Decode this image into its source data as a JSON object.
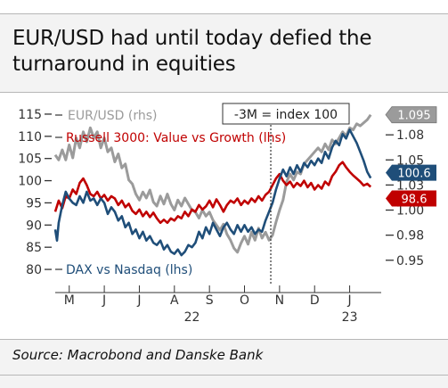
{
  "title": "EUR/USD had until today defied the turnaround in equities",
  "title_lines": [
    "EUR/USD had until today defied the",
    "turnaround in equities"
  ],
  "source": "Source: Macrobond and Danske Bank",
  "colors": {
    "eurusd": "#9b9b9b",
    "russell": "#c00000",
    "dax": "#1f4e79",
    "axis": "#333333"
  },
  "chart_data": {
    "type": "line",
    "title": "EUR/USD had until today defied the turnaround in equities",
    "annotation": "-3M = index 100",
    "annotation_x_month": 5.75,
    "x_tick_labels": [
      "M",
      "J",
      "J",
      "A",
      "S",
      "O",
      "N",
      "D",
      "J"
    ],
    "x_tick_months": [
      0,
      1,
      2,
      3,
      4,
      5,
      6,
      7,
      8
    ],
    "year_labels": [
      {
        "text": "22",
        "month": 3.5
      },
      {
        "text": "23",
        "month": 8
      }
    ],
    "x_range_months": [
      -0.4,
      8.9
    ],
    "left_axis": {
      "label": "lhs",
      "ylim": [
        78,
        117
      ],
      "ticks": [
        80,
        85,
        90,
        95,
        100,
        105,
        110,
        115
      ]
    },
    "right_axis": {
      "label": "rhs",
      "ylim": [
        0.932,
        1.1045
      ],
      "ticks": [
        "0.95",
        "0.98",
        "1.00",
        "1.03",
        "1.05",
        "1.08"
      ],
      "tick_values": [
        0.95,
        0.975,
        1.0,
        1.025,
        1.05,
        1.075
      ]
    },
    "end_labels": [
      {
        "series": "EUR/USD (rhs)",
        "text": "1.095"
      },
      {
        "series": "DAX vs Nasdaq (lhs)",
        "text": "100.6"
      },
      {
        "series": "Russell 3000: Value vs Growth (lhs)",
        "text": "98.6"
      }
    ],
    "series": [
      {
        "name": "EUR/USD (rhs)",
        "axis": "right",
        "color": "#9b9b9b",
        "points": [
          [
            -0.4,
            1.055
          ],
          [
            -0.3,
            1.05
          ],
          [
            -0.2,
            1.06
          ],
          [
            -0.1,
            1.05
          ],
          [
            0.0,
            1.065
          ],
          [
            0.1,
            1.052
          ],
          [
            0.2,
            1.072
          ],
          [
            0.3,
            1.062
          ],
          [
            0.4,
            1.078
          ],
          [
            0.5,
            1.068
          ],
          [
            0.6,
            1.082
          ],
          [
            0.7,
            1.072
          ],
          [
            0.8,
            1.078
          ],
          [
            0.9,
            1.062
          ],
          [
            1.0,
            1.072
          ],
          [
            1.1,
            1.058
          ],
          [
            1.2,
            1.062
          ],
          [
            1.3,
            1.048
          ],
          [
            1.4,
            1.056
          ],
          [
            1.5,
            1.042
          ],
          [
            1.6,
            1.046
          ],
          [
            1.7,
            1.03
          ],
          [
            1.8,
            1.026
          ],
          [
            1.9,
            1.016
          ],
          [
            2.0,
            1.01
          ],
          [
            2.1,
            1.018
          ],
          [
            2.2,
            1.012
          ],
          [
            2.3,
            1.02
          ],
          [
            2.4,
            1.008
          ],
          [
            2.5,
            1.004
          ],
          [
            2.6,
            1.014
          ],
          [
            2.7,
            1.006
          ],
          [
            2.8,
            1.016
          ],
          [
            2.9,
            1.006
          ],
          [
            3.0,
            1.0
          ],
          [
            3.1,
            1.01
          ],
          [
            3.2,
            1.004
          ],
          [
            3.3,
            1.012
          ],
          [
            3.4,
            1.006
          ],
          [
            3.5,
            1.0
          ],
          [
            3.6,
            0.998
          ],
          [
            3.7,
            0.992
          ],
          [
            3.8,
            1.0
          ],
          [
            3.9,
            0.994
          ],
          [
            4.0,
            0.998
          ],
          [
            4.1,
            0.99
          ],
          [
            4.2,
            0.985
          ],
          [
            4.3,
            0.98
          ],
          [
            4.4,
            0.986
          ],
          [
            4.5,
            0.976
          ],
          [
            4.6,
            0.97
          ],
          [
            4.7,
            0.962
          ],
          [
            4.8,
            0.958
          ],
          [
            4.9,
            0.967
          ],
          [
            5.0,
            0.974
          ],
          [
            5.1,
            0.966
          ],
          [
            5.2,
            0.978
          ],
          [
            5.3,
            0.97
          ],
          [
            5.4,
            0.982
          ],
          [
            5.5,
            0.972
          ],
          [
            5.6,
            0.978
          ],
          [
            5.7,
            0.97
          ],
          [
            5.8,
            0.975
          ],
          [
            5.9,
            0.988
          ],
          [
            6.0,
            1.0
          ],
          [
            6.1,
            1.01
          ],
          [
            6.2,
            1.028
          ],
          [
            6.3,
            1.036
          ],
          [
            6.4,
            1.03
          ],
          [
            6.5,
            1.038
          ],
          [
            6.6,
            1.036
          ],
          [
            6.7,
            1.046
          ],
          [
            6.8,
            1.05
          ],
          [
            6.9,
            1.054
          ],
          [
            7.0,
            1.058
          ],
          [
            7.1,
            1.062
          ],
          [
            7.2,
            1.058
          ],
          [
            7.3,
            1.066
          ],
          [
            7.4,
            1.06
          ],
          [
            7.5,
            1.07
          ],
          [
            7.6,
            1.066
          ],
          [
            7.7,
            1.072
          ],
          [
            7.8,
            1.078
          ],
          [
            7.9,
            1.074
          ],
          [
            8.0,
            1.082
          ],
          [
            8.1,
            1.08
          ],
          [
            8.2,
            1.086
          ],
          [
            8.3,
            1.084
          ],
          [
            8.5,
            1.09
          ],
          [
            8.6,
            1.095
          ]
        ]
      },
      {
        "name": "Russell 3000: Value vs Growth (lhs)",
        "axis": "left",
        "color": "#c00000",
        "points": [
          [
            -0.4,
            93.0
          ],
          [
            -0.3,
            95.5
          ],
          [
            -0.2,
            93.8
          ],
          [
            -0.1,
            96.5
          ],
          [
            0.0,
            96.0
          ],
          [
            0.1,
            98.0
          ],
          [
            0.2,
            97.0
          ],
          [
            0.3,
            99.5
          ],
          [
            0.4,
            100.5
          ],
          [
            0.5,
            99.0
          ],
          [
            0.6,
            97.0
          ],
          [
            0.7,
            96.5
          ],
          [
            0.8,
            97.5
          ],
          [
            0.9,
            96.0
          ],
          [
            1.0,
            96.8
          ],
          [
            1.1,
            95.5
          ],
          [
            1.2,
            96.5
          ],
          [
            1.3,
            96.0
          ],
          [
            1.4,
            94.5
          ],
          [
            1.5,
            95.5
          ],
          [
            1.6,
            94.0
          ],
          [
            1.7,
            94.8
          ],
          [
            1.8,
            93.2
          ],
          [
            1.9,
            92.5
          ],
          [
            2.0,
            93.5
          ],
          [
            2.1,
            92.0
          ],
          [
            2.2,
            93.0
          ],
          [
            2.3,
            91.8
          ],
          [
            2.4,
            92.8
          ],
          [
            2.5,
            91.5
          ],
          [
            2.6,
            90.5
          ],
          [
            2.7,
            91.2
          ],
          [
            2.8,
            90.5
          ],
          [
            2.9,
            91.5
          ],
          [
            3.0,
            91.0
          ],
          [
            3.1,
            92.0
          ],
          [
            3.2,
            91.5
          ],
          [
            3.3,
            93.0
          ],
          [
            3.4,
            92.0
          ],
          [
            3.5,
            93.5
          ],
          [
            3.6,
            93.0
          ],
          [
            3.7,
            94.5
          ],
          [
            3.8,
            93.5
          ],
          [
            3.9,
            94.2
          ],
          [
            4.0,
            95.5
          ],
          [
            4.1,
            94.0
          ],
          [
            4.2,
            95.8
          ],
          [
            4.3,
            94.5
          ],
          [
            4.4,
            93.0
          ],
          [
            4.5,
            94.5
          ],
          [
            4.6,
            95.5
          ],
          [
            4.7,
            95.0
          ],
          [
            4.8,
            96.0
          ],
          [
            4.9,
            94.5
          ],
          [
            5.0,
            95.5
          ],
          [
            5.1,
            94.8
          ],
          [
            5.2,
            96.0
          ],
          [
            5.3,
            95.2
          ],
          [
            5.4,
            96.5
          ],
          [
            5.5,
            95.5
          ],
          [
            5.6,
            96.8
          ],
          [
            5.7,
            97.5
          ],
          [
            5.8,
            99.0
          ],
          [
            5.9,
            100.5
          ],
          [
            6.0,
            101.5
          ],
          [
            6.1,
            100.0
          ],
          [
            6.2,
            99.0
          ],
          [
            6.3,
            99.8
          ],
          [
            6.4,
            98.5
          ],
          [
            6.5,
            99.5
          ],
          [
            6.6,
            98.8
          ],
          [
            6.7,
            100.0
          ],
          [
            6.8,
            98.5
          ],
          [
            6.9,
            99.5
          ],
          [
            7.0,
            98.0
          ],
          [
            7.1,
            99.0
          ],
          [
            7.2,
            98.2
          ],
          [
            7.3,
            99.8
          ],
          [
            7.4,
            99.0
          ],
          [
            7.5,
            101.0
          ],
          [
            7.6,
            102.0
          ],
          [
            7.7,
            103.5
          ],
          [
            7.8,
            104.2
          ],
          [
            7.9,
            103.0
          ],
          [
            8.0,
            102.0
          ],
          [
            8.1,
            101.2
          ],
          [
            8.2,
            100.5
          ],
          [
            8.3,
            99.8
          ],
          [
            8.4,
            98.9
          ],
          [
            8.5,
            99.3
          ],
          [
            8.6,
            98.6
          ]
        ]
      },
      {
        "name": "DAX vs Nasdaq (lhs)",
        "axis": "left",
        "color": "#1f4e79",
        "points": [
          [
            -0.4,
            89.0
          ],
          [
            -0.35,
            86.5
          ],
          [
            -0.3,
            90.5
          ],
          [
            -0.2,
            94.5
          ],
          [
            -0.1,
            97.5
          ],
          [
            0.0,
            96.0
          ],
          [
            0.1,
            95.0
          ],
          [
            0.2,
            94.5
          ],
          [
            0.3,
            96.5
          ],
          [
            0.4,
            95.0
          ],
          [
            0.5,
            97.5
          ],
          [
            0.6,
            95.5
          ],
          [
            0.7,
            96.0
          ],
          [
            0.8,
            94.5
          ],
          [
            0.9,
            96.0
          ],
          [
            1.0,
            95.0
          ],
          [
            1.1,
            92.5
          ],
          [
            1.2,
            94.0
          ],
          [
            1.3,
            93.0
          ],
          [
            1.4,
            91.0
          ],
          [
            1.5,
            92.0
          ],
          [
            1.6,
            89.5
          ],
          [
            1.7,
            90.5
          ],
          [
            1.8,
            88.0
          ],
          [
            1.9,
            89.0
          ],
          [
            2.0,
            87.0
          ],
          [
            2.1,
            88.5
          ],
          [
            2.2,
            86.5
          ],
          [
            2.3,
            87.5
          ],
          [
            2.4,
            86.0
          ],
          [
            2.5,
            85.5
          ],
          [
            2.6,
            86.5
          ],
          [
            2.7,
            84.5
          ],
          [
            2.8,
            85.5
          ],
          [
            2.9,
            84.0
          ],
          [
            3.0,
            83.5
          ],
          [
            3.1,
            84.5
          ],
          [
            3.2,
            83.2
          ],
          [
            3.3,
            84.0
          ],
          [
            3.4,
            85.5
          ],
          [
            3.5,
            85.0
          ],
          [
            3.6,
            86.0
          ],
          [
            3.7,
            88.5
          ],
          [
            3.8,
            87.0
          ],
          [
            3.9,
            89.5
          ],
          [
            4.0,
            88.0
          ],
          [
            4.1,
            90.5
          ],
          [
            4.2,
            89.0
          ],
          [
            4.3,
            87.5
          ],
          [
            4.4,
            89.5
          ],
          [
            4.5,
            90.5
          ],
          [
            4.6,
            89.0
          ],
          [
            4.7,
            88.0
          ],
          [
            4.8,
            90.0
          ],
          [
            4.9,
            88.5
          ],
          [
            5.0,
            90.0
          ],
          [
            5.1,
            88.5
          ],
          [
            5.2,
            89.5
          ],
          [
            5.3,
            88.0
          ],
          [
            5.4,
            89.0
          ],
          [
            5.5,
            88.5
          ],
          [
            5.6,
            91.0
          ],
          [
            5.7,
            93.0
          ],
          [
            5.8,
            95.0
          ],
          [
            5.9,
            98.0
          ],
          [
            6.0,
            100.5
          ],
          [
            6.1,
            102.5
          ],
          [
            6.2,
            101.0
          ],
          [
            6.3,
            103.0
          ],
          [
            6.4,
            101.5
          ],
          [
            6.5,
            103.5
          ],
          [
            6.6,
            102.0
          ],
          [
            6.7,
            104.0
          ],
          [
            6.8,
            103.0
          ],
          [
            6.9,
            104.5
          ],
          [
            7.0,
            103.5
          ],
          [
            7.1,
            105.0
          ],
          [
            7.2,
            104.0
          ],
          [
            7.3,
            106.5
          ],
          [
            7.4,
            105.0
          ],
          [
            7.5,
            107.5
          ],
          [
            7.6,
            109.0
          ],
          [
            7.7,
            108.0
          ],
          [
            7.8,
            110.5
          ],
          [
            7.9,
            109.5
          ],
          [
            8.0,
            111.5
          ],
          [
            8.1,
            110.0
          ],
          [
            8.2,
            108.5
          ],
          [
            8.3,
            106.5
          ],
          [
            8.4,
            104.5
          ],
          [
            8.5,
            102.0
          ],
          [
            8.6,
            100.6
          ]
        ]
      }
    ]
  }
}
